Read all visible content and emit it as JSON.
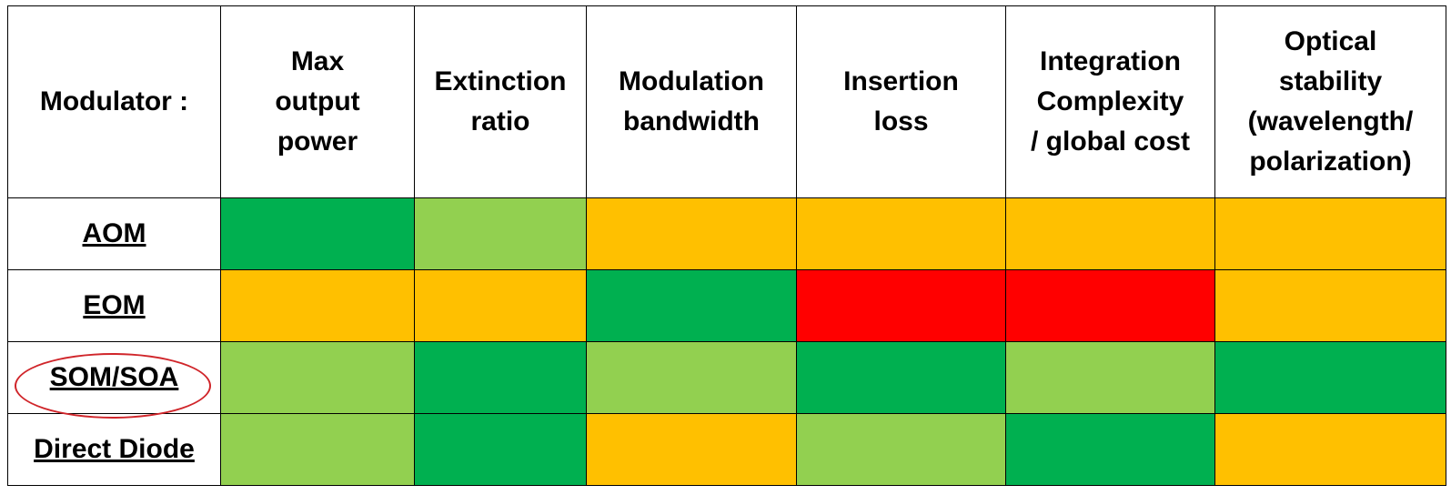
{
  "table": {
    "header": [
      "Modulator :",
      "Max\noutput\npower",
      "Extinction\nratio",
      "Modulation\nbandwidth",
      "Insertion\nloss",
      "Integration\nComplexity\n/ global cost",
      "Optical\nstability\n(wavelength/\npolarization)"
    ],
    "rows": [
      {
        "label": "AOM",
        "colors": [
          "#00b050",
          "#92d050",
          "#ffc000",
          "#ffc000",
          "#ffc000",
          "#ffc000"
        ]
      },
      {
        "label": "EOM",
        "colors": [
          "#ffc000",
          "#ffc000",
          "#00b050",
          "#ff0000",
          "#ff0000",
          "#ffc000"
        ]
      },
      {
        "label": "SOM/SOA",
        "colors": [
          "#92d050",
          "#00b050",
          "#92d050",
          "#00b050",
          "#92d050",
          "#00b050"
        ]
      },
      {
        "label": "Direct Diode",
        "colors": [
          "#92d050",
          "#00b050",
          "#ffc000",
          "#92d050",
          "#00b050",
          "#ffc000"
        ]
      }
    ]
  }
}
